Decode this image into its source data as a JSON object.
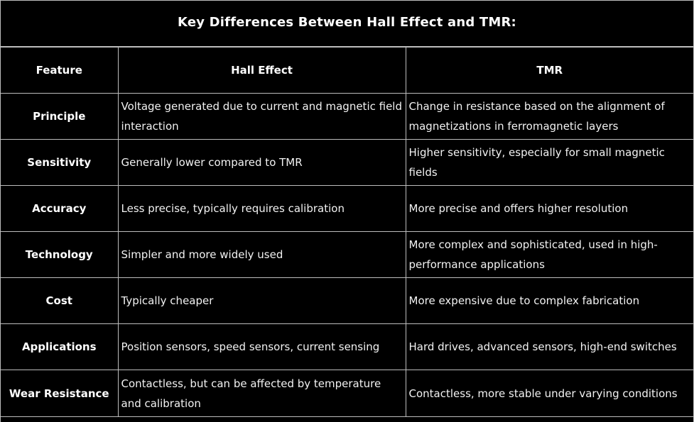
{
  "title": "Key Differences Between Hall Effect and TMR:",
  "table": {
    "headers": [
      "Feature",
      "Hall Effect",
      "TMR"
    ],
    "rows": [
      {
        "feature": "Principle",
        "hall": "Voltage generated due to current and magnetic field interaction",
        "tmr": "Change in resistance based on the alignment of magnetizations in ferromagnetic layers"
      },
      {
        "feature": "Sensitivity",
        "hall": "Generally lower compared to TMR",
        "tmr": "Higher sensitivity, especially for small magnetic fields"
      },
      {
        "feature": "Accuracy",
        "hall": "Less precise, typically requires calibration",
        "tmr": "More precise and offers higher resolution"
      },
      {
        "feature": "Technology",
        "hall": "Simpler and more widely used",
        "tmr": "More complex and sophisticated, used in high-performance applications"
      },
      {
        "feature": "Cost",
        "hall": "Typically cheaper",
        "tmr": "More expensive due to complex fabrication"
      },
      {
        "feature": "Applications",
        "hall": "Position sensors, speed sensors, current sensing",
        "tmr": "Hard drives, advanced sensors, high-end switches"
      },
      {
        "feature": "Wear Resistance",
        "hall": "Contactless, but can be affected by temperature and calibration",
        "tmr": "Contactless, more stable under varying conditions"
      }
    ]
  }
}
